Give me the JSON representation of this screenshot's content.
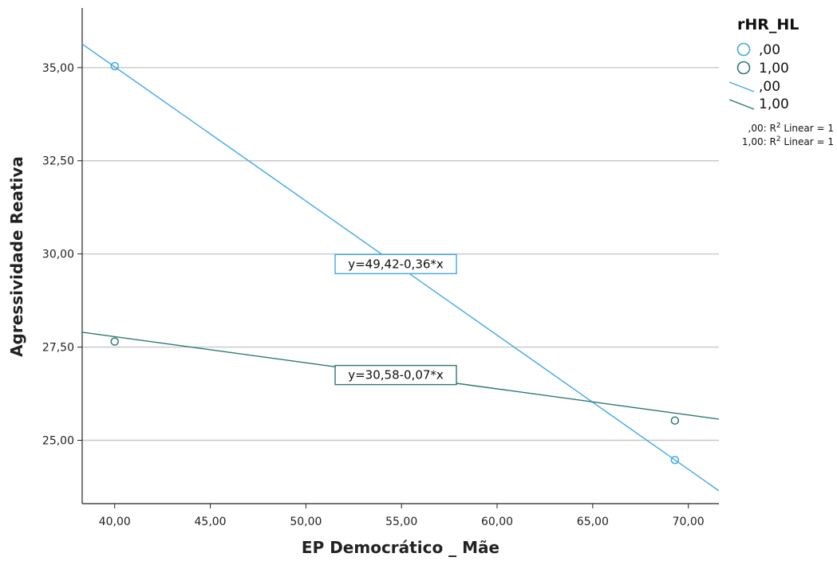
{
  "chart_data": {
    "type": "scatter",
    "xlabel": "EP Democrático _ Mãe",
    "ylabel": "Agressividade Reativa",
    "xlim": [
      38.3,
      71.6
    ],
    "ylim": [
      23.3,
      36.6
    ],
    "x_ticks": [
      40,
      45,
      50,
      55,
      60,
      65,
      70
    ],
    "x_tick_labels": [
      "40,00",
      "45,00",
      "50,00",
      "55,00",
      "60,00",
      "65,00",
      "70,00"
    ],
    "y_ticks": [
      25,
      27.5,
      30,
      32.5,
      35
    ],
    "y_tick_labels": [
      "25,00",
      "27,50",
      "30,00",
      "32,50",
      "35,00"
    ],
    "grid": "horizontal",
    "legend_position": "top-right",
    "legend": {
      "title": "rHR_HL",
      "markers": [
        ",00",
        "1,00"
      ],
      "lines": [
        ",00",
        "1,00"
      ],
      "notes": [
        {
          "prefix": ",00: R",
          "sup": "2",
          "suffix": " Linear = 1"
        },
        {
          "prefix": "1,00: R",
          "sup": "2",
          "suffix": " Linear = 1"
        }
      ]
    },
    "series": [
      {
        "name": ",00",
        "color": "#3fa9e6",
        "points": [
          {
            "x": 40,
            "y": 35.04
          },
          {
            "x": 69.3,
            "y": 24.47
          }
        ],
        "fit": {
          "intercept": 49.42,
          "slope": -0.36,
          "label": "y=49,42-0,36*x",
          "label_x": 54.7
        }
      },
      {
        "name": "1,00",
        "color": "#2b7a6e",
        "points": [
          {
            "x": 40,
            "y": 27.65
          },
          {
            "x": 69.3,
            "y": 25.53
          }
        ],
        "fit": {
          "intercept": 30.58,
          "slope": -0.07,
          "label": "y=30,58-0,07*x",
          "label_x": 54.7
        }
      }
    ]
  }
}
